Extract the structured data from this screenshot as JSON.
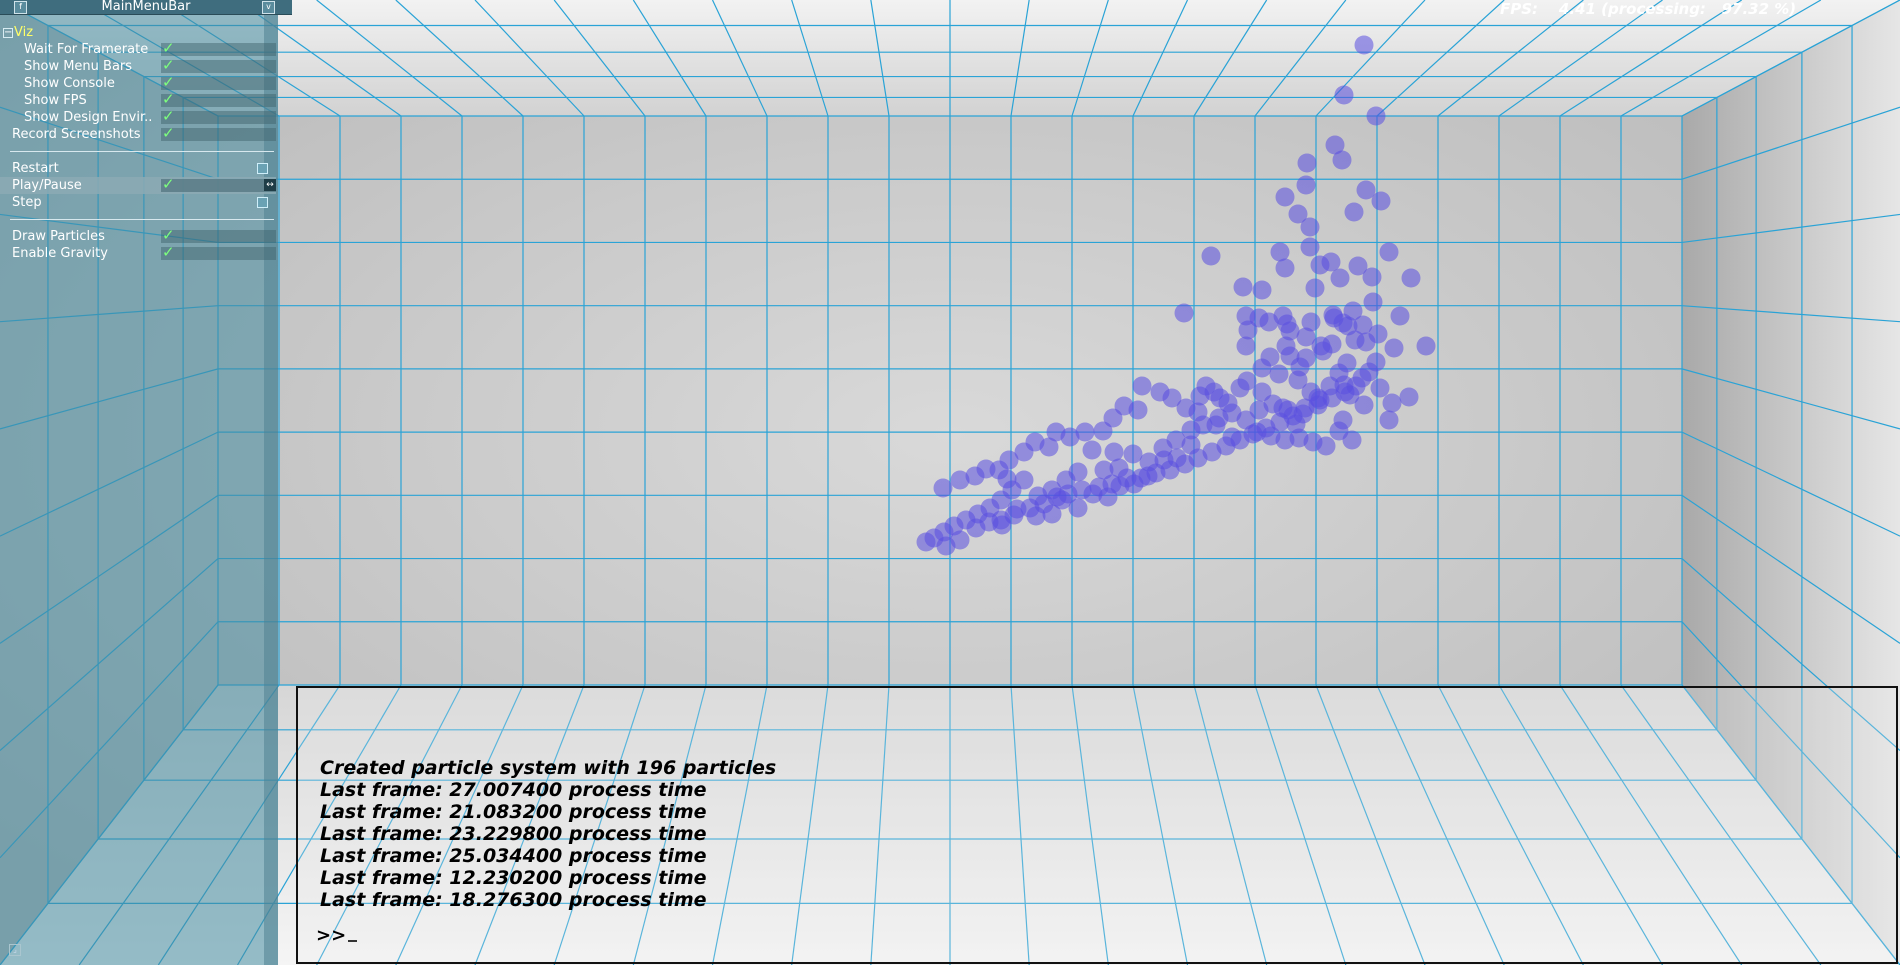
{
  "window": {
    "title": "MainMenuBar"
  },
  "menu": {
    "group_label": "Viz",
    "items": [
      {
        "label": "Wait For Framerate",
        "checked": true
      },
      {
        "label": "Show Menu Bars",
        "checked": true
      },
      {
        "label": "Show Console",
        "checked": true
      },
      {
        "label": "Show FPS",
        "checked": true
      },
      {
        "label": "Show Design Envir..",
        "checked": true
      },
      {
        "label": "Record Screenshots",
        "checked": true
      }
    ],
    "controls": [
      {
        "label": "Restart",
        "type": "button"
      },
      {
        "label": "Play/Pause",
        "checked": true
      },
      {
        "label": "Step",
        "type": "button"
      }
    ],
    "options": [
      {
        "label": "Draw Particles",
        "checked": true
      },
      {
        "label": "Enable Gravity",
        "checked": true
      }
    ],
    "check_glyph": "✓"
  },
  "fps": {
    "text": "FPS:    4.41 (processing:   97.32 %)"
  },
  "console": {
    "lines": [
      "Created particle system with 196 particles",
      "Last frame: 27.007400 process time",
      "Last frame: 21.083200 process time",
      "Last frame: 23.229800 process time",
      "Last frame: 25.034400 process time",
      "Last frame: 12.230200 process time",
      "Last frame: 18.276300 process time"
    ],
    "prompt": ">>"
  },
  "colors": {
    "grid": "#2aa3d6",
    "particle": "#5a4fe0",
    "panel": "#4f8e9f"
  }
}
